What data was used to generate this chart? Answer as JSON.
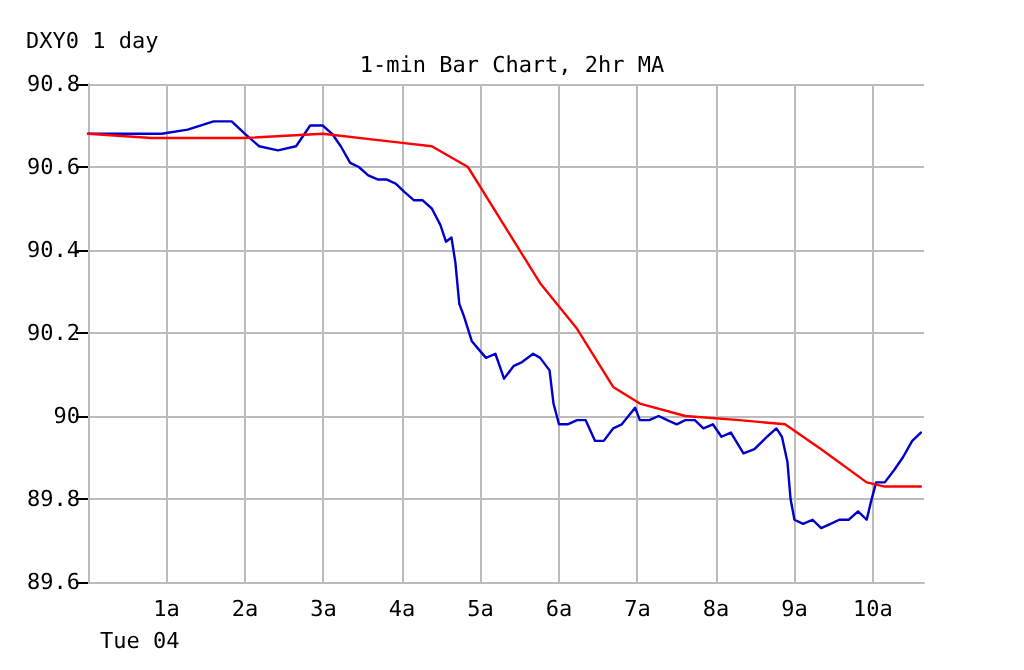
{
  "chart_data": {
    "type": "line",
    "title": "DXY0 1 day",
    "subtitle": "1-min Bar Chart, 2hr MA",
    "xlabel": "Tue 04",
    "xlim": [
      0,
      10.65
    ],
    "xticks": [
      {
        "value": 1,
        "label": "1a"
      },
      {
        "value": 2,
        "label": "2a"
      },
      {
        "value": 3,
        "label": "3a"
      },
      {
        "value": 4,
        "label": "4a"
      },
      {
        "value": 5,
        "label": "5a"
      },
      {
        "value": 6,
        "label": "6a"
      },
      {
        "value": 7,
        "label": "7a"
      },
      {
        "value": 8,
        "label": "8a"
      },
      {
        "value": 9,
        "label": "9a"
      },
      {
        "value": 10,
        "label": "10a"
      }
    ],
    "ylim": [
      89.6,
      90.8
    ],
    "yticks": [
      89.6,
      89.8,
      {
        "value": 90,
        "label": "90"
      },
      90.2,
      90.4,
      90.6,
      90.8
    ],
    "grid": true,
    "marker": "none",
    "line_style": "solid",
    "series": [
      {
        "color": "#0000cc",
        "x": [
          0,
          0.28,
          0.61,
          0.94,
          1.27,
          1.6,
          1.83,
          2,
          2.18,
          2.42,
          2.65,
          2.76,
          2.83,
          2.99,
          3.11,
          3.22,
          3.34,
          3.45,
          3.57,
          3.69,
          3.8,
          3.92,
          4.03,
          4.15,
          4.26,
          4.38,
          4.49,
          4.56,
          4.63,
          4.68,
          4.73,
          4.79,
          4.89,
          4.98,
          5.07,
          5.19,
          5.3,
          5.42,
          5.53,
          5.67,
          5.76,
          5.88,
          5.93,
          6,
          6.11,
          6.23,
          6.34,
          6.46,
          6.57,
          6.69,
          6.8,
          6.97,
          7.03,
          7.15,
          7.27,
          7.38,
          7.5,
          7.61,
          7.73,
          7.84,
          7.96,
          8.07,
          8.19,
          8.35,
          8.49,
          8.65,
          8.77,
          8.84,
          8.91,
          8.95,
          9,
          9.11,
          9.23,
          9.34,
          9.46,
          9.57,
          9.69,
          9.81,
          9.92,
          9.97,
          10.04,
          10.15,
          10.27,
          10.38,
          10.5,
          10.61
        ],
        "values": [
          90.68,
          90.68,
          90.68,
          90.68,
          90.69,
          90.71,
          90.71,
          90.68,
          90.65,
          90.64,
          90.65,
          90.68,
          90.7,
          90.7,
          90.68,
          90.65,
          90.61,
          90.6,
          90.58,
          90.57,
          90.57,
          90.56,
          90.54,
          90.52,
          90.52,
          90.5,
          90.46,
          90.42,
          90.43,
          90.37,
          90.27,
          90.24,
          90.18,
          90.16,
          90.14,
          90.15,
          90.09,
          90.12,
          90.13,
          90.15,
          90.14,
          90.11,
          90.03,
          89.98,
          89.98,
          89.99,
          89.99,
          89.94,
          89.94,
          89.97,
          89.98,
          90.02,
          89.99,
          89.99,
          90,
          89.99,
          89.98,
          89.99,
          89.99,
          89.97,
          89.98,
          89.95,
          89.96,
          89.91,
          89.92,
          89.95,
          89.97,
          89.95,
          89.89,
          89.8,
          89.75,
          89.74,
          89.75,
          89.73,
          89.74,
          89.75,
          89.75,
          89.77,
          89.75,
          89.79,
          89.84,
          89.84,
          89.87,
          89.9,
          89.94,
          89.96
        ]
      },
      {
        "color": "#ff0000",
        "x": [
          0,
          0.81,
          2,
          2.99,
          3.92,
          4.38,
          4.84,
          5.3,
          5.76,
          6.23,
          6.69,
          7.03,
          7.61,
          8.3,
          8.88,
          9.34,
          9.92,
          10.15,
          10.61
        ],
        "values": [
          90.68,
          90.67,
          90.67,
          90.68,
          90.66,
          90.65,
          90.6,
          90.46,
          90.32,
          90.21,
          90.07,
          90.03,
          90,
          89.99,
          89.98,
          89.92,
          89.84,
          89.83,
          89.83
        ]
      }
    ]
  }
}
